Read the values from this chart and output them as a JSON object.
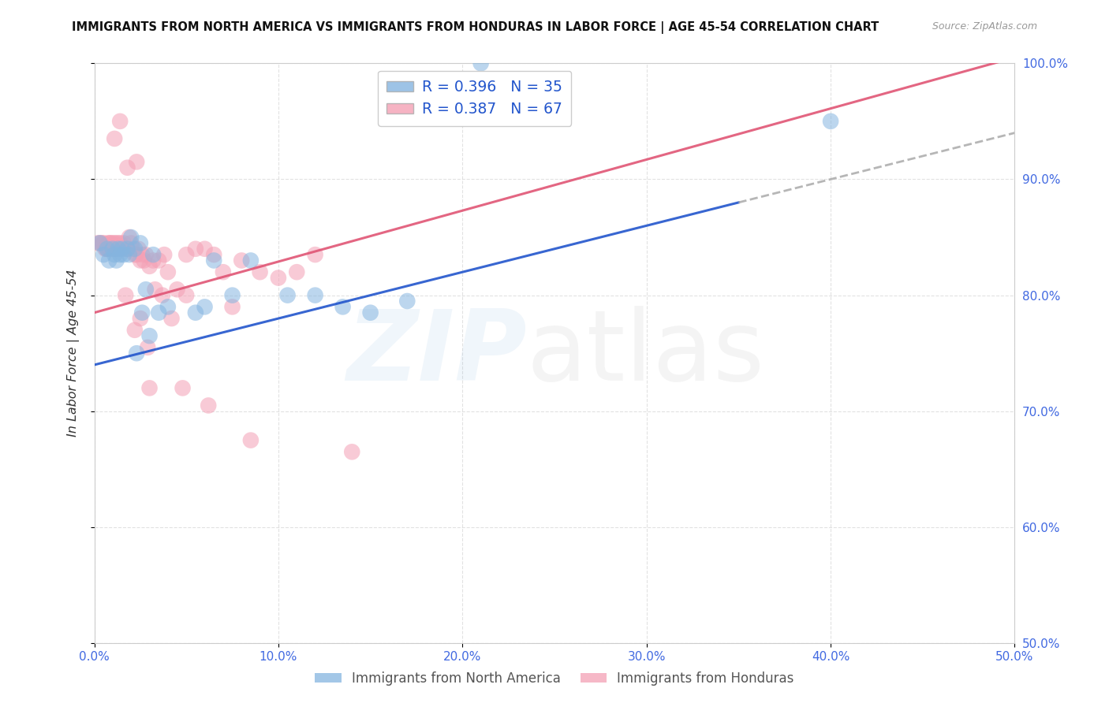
{
  "title": "IMMIGRANTS FROM NORTH AMERICA VS IMMIGRANTS FROM HONDURAS IN LABOR FORCE | AGE 45-54 CORRELATION CHART",
  "source": "Source: ZipAtlas.com",
  "ylabel": "In Labor Force | Age 45-54",
  "legend_north_america": "Immigrants from North America",
  "legend_honduras": "Immigrants from Honduras",
  "r_north_america": 0.396,
  "n_north_america": 35,
  "r_honduras": 0.387,
  "n_honduras": 67,
  "color_blue": "#85b5e0",
  "color_pink": "#f4a0b5",
  "color_blue_line": "#2255cc",
  "color_pink_line": "#e05575",
  "color_blue_text": "#2255cc",
  "color_tick": "#4169e1",
  "scatter_alpha": 0.55,
  "scatter_size": 220,
  "xlim": [
    0.0,
    50.0
  ],
  "ylim": [
    50.0,
    100.0
  ],
  "xticks": [
    0.0,
    10.0,
    20.0,
    30.0,
    40.0,
    50.0
  ],
  "xtick_labels": [
    "0.0%",
    "10.0%",
    "20.0%",
    "30.0%",
    "40.0%",
    "50.0%"
  ],
  "yticks": [
    50.0,
    60.0,
    70.0,
    80.0,
    90.0,
    100.0
  ],
  "ytick_labels": [
    "50.0%",
    "60.0%",
    "70.0%",
    "80.0%",
    "90.0%",
    "100.0%"
  ],
  "trend_na_x0": 0.0,
  "trend_na_y0": 74.0,
  "trend_na_x1": 35.0,
  "trend_na_y1": 88.0,
  "trend_hon_x0": 0.0,
  "trend_hon_y0": 78.5,
  "trend_hon_x1": 50.0,
  "trend_hon_y1": 100.5,
  "dashed_start_x": 35.0,
  "dashed_end_x": 50.0,
  "north_america_x": [
    0.3,
    0.5,
    0.7,
    0.8,
    1.0,
    1.1,
    1.2,
    1.3,
    1.4,
    1.5,
    1.6,
    1.8,
    1.9,
    2.0,
    2.2,
    2.5,
    2.8,
    3.2,
    3.5,
    4.0,
    5.5,
    6.0,
    6.5,
    7.5,
    8.5,
    10.5,
    12.0,
    13.5,
    15.0,
    17.0,
    21.0,
    40.0,
    2.3,
    2.6,
    3.0
  ],
  "north_america_y": [
    84.5,
    83.5,
    84.0,
    83.0,
    84.0,
    83.5,
    83.0,
    84.0,
    83.5,
    84.0,
    83.5,
    84.0,
    83.5,
    85.0,
    84.0,
    84.5,
    80.5,
    83.5,
    78.5,
    79.0,
    78.5,
    79.0,
    83.0,
    80.0,
    83.0,
    80.0,
    80.0,
    79.0,
    78.5,
    79.5,
    100.0,
    95.0,
    75.0,
    78.5,
    76.5
  ],
  "honduras_x": [
    0.2,
    0.3,
    0.4,
    0.5,
    0.6,
    0.65,
    0.7,
    0.75,
    0.8,
    0.85,
    0.9,
    1.0,
    1.05,
    1.1,
    1.15,
    1.2,
    1.3,
    1.35,
    1.4,
    1.5,
    1.6,
    1.7,
    1.8,
    1.9,
    2.0,
    2.1,
    2.2,
    2.3,
    2.4,
    2.5,
    2.6,
    2.7,
    2.8,
    3.0,
    3.2,
    3.5,
    3.8,
    4.0,
    4.5,
    5.0,
    5.5,
    6.0,
    6.5,
    7.0,
    7.5,
    8.0,
    9.0,
    10.0,
    11.0,
    12.0,
    2.2,
    2.5,
    3.3,
    3.7,
    4.2,
    1.1,
    1.4,
    1.8,
    2.3,
    2.9,
    4.8,
    6.2,
    8.5,
    14.0,
    5.0,
    3.0,
    1.7
  ],
  "honduras_y": [
    84.5,
    84.5,
    84.5,
    84.5,
    84.0,
    84.0,
    84.0,
    84.5,
    84.0,
    84.5,
    84.5,
    84.0,
    84.5,
    84.0,
    84.5,
    84.0,
    84.5,
    84.0,
    84.5,
    84.0,
    84.5,
    84.0,
    84.0,
    85.0,
    84.5,
    84.0,
    83.5,
    83.5,
    84.0,
    83.0,
    83.5,
    83.0,
    83.5,
    82.5,
    83.0,
    83.0,
    83.5,
    82.0,
    80.5,
    80.0,
    84.0,
    84.0,
    83.5,
    82.0,
    79.0,
    83.0,
    82.0,
    81.5,
    82.0,
    83.5,
    77.0,
    78.0,
    80.5,
    80.0,
    78.0,
    93.5,
    95.0,
    91.0,
    91.5,
    75.5,
    72.0,
    70.5,
    67.5,
    66.5,
    83.5,
    72.0,
    80.0
  ],
  "background_color": "#ffffff",
  "grid_color": "#d0d0d0"
}
